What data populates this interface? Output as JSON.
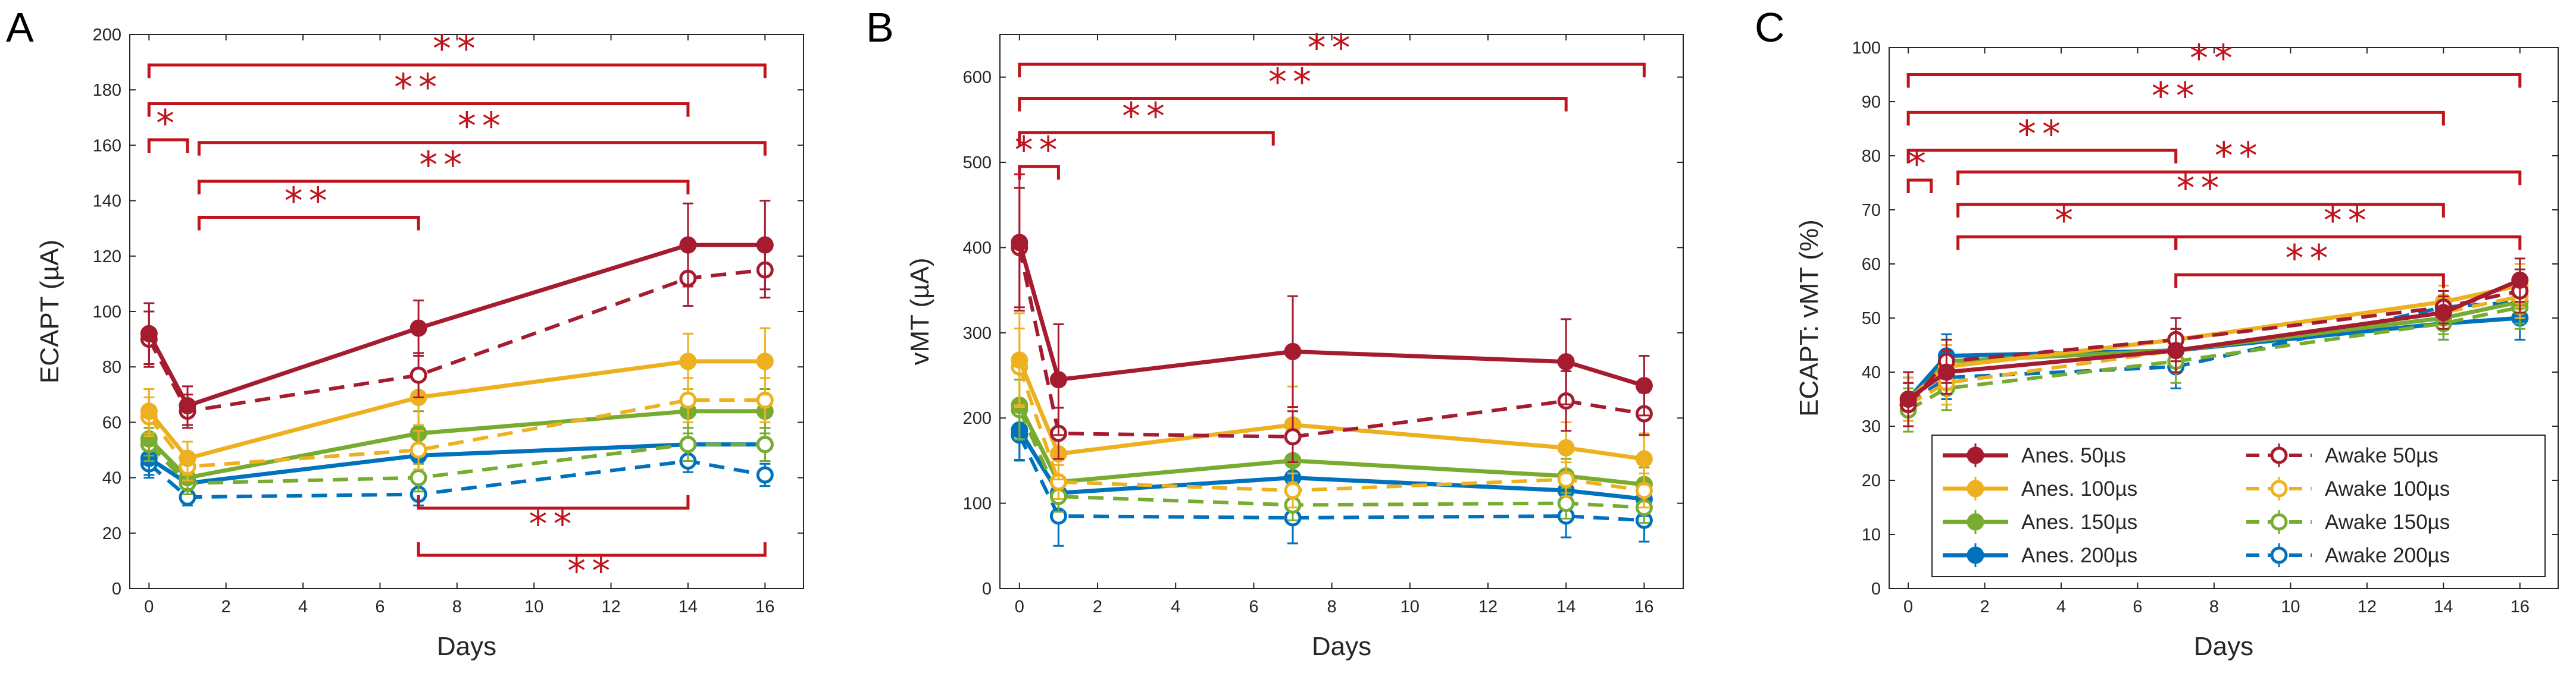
{
  "chart_data": [
    {
      "type": "line",
      "panel_label": "A",
      "xlabel": "Days",
      "ylabel": "ECAPT (µA)",
      "xlim": [
        -0.5,
        17
      ],
      "ylim": [
        0,
        200
      ],
      "xticks": [
        "0",
        "2",
        "4",
        "6",
        "8",
        "10",
        "12",
        "14",
        "16"
      ],
      "yticks": [
        "0",
        "20",
        "40",
        "60",
        "80",
        "100",
        "120",
        "140",
        "160",
        "180",
        "200"
      ],
      "x": [
        0,
        1,
        7,
        14,
        16
      ],
      "series": [
        {
          "name": "Anes. 50µs",
          "color": "#a51c30",
          "dash": false,
          "filled": true,
          "values": [
            92,
            66,
            94,
            124,
            124
          ],
          "err": [
            11,
            7,
            10,
            15,
            16
          ]
        },
        {
          "name": "Awake 50µs",
          "color": "#a51c30",
          "dash": true,
          "filled": false,
          "values": [
            90,
            64,
            77,
            112,
            115
          ],
          "err": [
            10,
            6,
            8,
            10,
            10
          ]
        },
        {
          "name": "Anes. 100µs",
          "color": "#edb120",
          "dash": false,
          "filled": true,
          "values": [
            64,
            47,
            69,
            82,
            82
          ],
          "err": [
            8,
            6,
            10,
            10,
            12
          ]
        },
        {
          "name": "Awake 100µs",
          "color": "#edb120",
          "dash": true,
          "filled": false,
          "values": [
            62,
            44,
            50,
            68,
            68
          ],
          "err": [
            7,
            5,
            7,
            8,
            8
          ]
        },
        {
          "name": "Anes. 150µs",
          "color": "#77ac30",
          "dash": false,
          "filled": true,
          "values": [
            54,
            40,
            56,
            64,
            64
          ],
          "err": [
            6,
            4,
            8,
            8,
            8
          ]
        },
        {
          "name": "Awake 150µs",
          "color": "#77ac30",
          "dash": true,
          "filled": false,
          "values": [
            52,
            38,
            40,
            52,
            52
          ],
          "err": [
            6,
            4,
            5,
            6,
            6
          ]
        },
        {
          "name": "Anes. 200µs",
          "color": "#0072bd",
          "dash": false,
          "filled": true,
          "values": [
            47,
            38,
            48,
            52,
            52
          ],
          "err": [
            6,
            4,
            6,
            6,
            6
          ]
        },
        {
          "name": "Awake 200µs",
          "color": "#0072bd",
          "dash": true,
          "filled": false,
          "values": [
            45,
            33,
            34,
            46,
            41
          ],
          "err": [
            5,
            3,
            4,
            4,
            4
          ]
        }
      ],
      "brackets": [
        {
          "x1": 0,
          "x2": 16,
          "y": 189,
          "label": "**"
        },
        {
          "x1": 0,
          "x2": 14,
          "y": 175,
          "label": "**"
        },
        {
          "x1": 0,
          "x2": 1,
          "y": 162,
          "label": "*"
        },
        {
          "x1": 1.3,
          "x2": 16,
          "y": 161,
          "label": "**"
        },
        {
          "x1": 1.3,
          "x2": 14,
          "y": 147,
          "label": "**"
        },
        {
          "x1": 1.3,
          "x2": 7,
          "y": 134,
          "label": "**"
        },
        {
          "x1": 7,
          "x2": 14,
          "y": 29,
          "label": "**",
          "down": true
        },
        {
          "x1": 7,
          "x2": 16,
          "y": 12,
          "label": "**",
          "down": true
        }
      ]
    },
    {
      "type": "line",
      "panel_label": "B",
      "xlabel": "Days",
      "ylabel": "vMT (µA)",
      "xlim": [
        -0.5,
        17
      ],
      "ylim": [
        0,
        650
      ],
      "xticks": [
        "0",
        "2",
        "4",
        "6",
        "8",
        "10",
        "12",
        "14",
        "16"
      ],
      "yticks": [
        "0",
        "100",
        "200",
        "300",
        "400",
        "500",
        "600"
      ],
      "x": [
        0,
        1,
        7,
        14,
        16
      ],
      "series": [
        {
          "name": "Anes. 50µs",
          "color": "#a51c30",
          "dash": false,
          "filled": true,
          "values": [
            406,
            245,
            278,
            266,
            238
          ],
          "err": [
            80,
            65,
            65,
            50,
            35
          ]
        },
        {
          "name": "Awake 50µs",
          "color": "#a51c30",
          "dash": true,
          "filled": false,
          "values": [
            400,
            182,
            178,
            220,
            205
          ],
          "err": [
            70,
            30,
            30,
            35,
            25
          ]
        },
        {
          "name": "Anes. 100µs",
          "color": "#edb120",
          "dash": false,
          "filled": true,
          "values": [
            268,
            158,
            192,
            165,
            152
          ],
          "err": [
            55,
            30,
            45,
            30,
            30
          ]
        },
        {
          "name": "Awake 100µs",
          "color": "#edb120",
          "dash": true,
          "filled": false,
          "values": [
            260,
            125,
            115,
            128,
            115
          ],
          "err": [
            45,
            20,
            20,
            20,
            20
          ]
        },
        {
          "name": "Anes. 150µs",
          "color": "#77ac30",
          "dash": false,
          "filled": true,
          "values": [
            215,
            125,
            150,
            132,
            122
          ],
          "err": [
            40,
            20,
            25,
            20,
            20
          ]
        },
        {
          "name": "Awake 150µs",
          "color": "#77ac30",
          "dash": true,
          "filled": false,
          "values": [
            210,
            108,
            98,
            100,
            95
          ],
          "err": [
            35,
            18,
            18,
            18,
            18
          ]
        },
        {
          "name": "Anes. 200µs",
          "color": "#0072bd",
          "dash": false,
          "filled": true,
          "values": [
            186,
            112,
            130,
            115,
            105
          ],
          "err": [
            35,
            20,
            25,
            20,
            20
          ]
        },
        {
          "name": "Awake 200µs",
          "color": "#0072bd",
          "dash": true,
          "filled": false,
          "values": [
            180,
            85,
            83,
            85,
            80
          ],
          "err": [
            30,
            35,
            30,
            25,
            25
          ]
        }
      ],
      "brackets": [
        {
          "x1": 0,
          "x2": 16,
          "y": 615,
          "label": "**"
        },
        {
          "x1": 0,
          "x2": 14,
          "y": 575,
          "label": "**"
        },
        {
          "x1": 0,
          "x2": 6.5,
          "y": 535,
          "label": "**"
        },
        {
          "x1": 0,
          "x2": 1,
          "y": 495,
          "label": "**"
        }
      ]
    },
    {
      "type": "line",
      "panel_label": "C",
      "xlabel": "Days",
      "ylabel": "ECAPT: vMT (%)",
      "xlim": [
        -0.5,
        17
      ],
      "ylim": [
        0,
        100
      ],
      "xticks": [
        "0",
        "2",
        "4",
        "6",
        "8",
        "10",
        "12",
        "14",
        "16"
      ],
      "yticks": [
        "0",
        "10",
        "20",
        "30",
        "40",
        "50",
        "60",
        "70",
        "80",
        "90",
        "100"
      ],
      "x": [
        0,
        1,
        7,
        14,
        16
      ],
      "series": [
        {
          "name": "Anes. 50µs",
          "color": "#a51c30",
          "dash": false,
          "filled": true,
          "values": [
            35,
            40,
            44,
            51,
            57
          ],
          "err": [
            5,
            4,
            4,
            3,
            4
          ]
        },
        {
          "name": "Awake 50µs",
          "color": "#a51c30",
          "dash": true,
          "filled": false,
          "values": [
            34,
            42,
            46,
            52,
            55
          ],
          "err": [
            4,
            4,
            4,
            3,
            4
          ]
        },
        {
          "name": "Anes. 100µs",
          "color": "#edb120",
          "dash": false,
          "filled": true,
          "values": [
            35,
            41,
            46,
            53,
            56
          ],
          "err": [
            4,
            4,
            4,
            3,
            4
          ]
        },
        {
          "name": "Awake 100µs",
          "color": "#edb120",
          "dash": true,
          "filled": false,
          "values": [
            34,
            38,
            44,
            51,
            54
          ],
          "err": [
            4,
            4,
            4,
            3,
            4
          ]
        },
        {
          "name": "Anes. 150µs",
          "color": "#77ac30",
          "dash": false,
          "filled": true,
          "values": [
            34,
            42,
            44,
            50,
            53
          ],
          "err": [
            4,
            4,
            4,
            3,
            4
          ]
        },
        {
          "name": "Awake 150µs",
          "color": "#77ac30",
          "dash": true,
          "filled": false,
          "values": [
            33,
            37,
            42,
            49,
            52
          ],
          "err": [
            4,
            4,
            4,
            3,
            4
          ]
        },
        {
          "name": "Anes. 200µs",
          "color": "#0072bd",
          "dash": false,
          "filled": true,
          "values": [
            35,
            43,
            44,
            49,
            50
          ],
          "err": [
            4,
            4,
            4,
            3,
            4
          ]
        },
        {
          "name": "Awake 200µs",
          "color": "#0072bd",
          "dash": true,
          "filled": false,
          "values": [
            34,
            39,
            41,
            52,
            53
          ],
          "err": [
            4,
            4,
            4,
            3,
            4
          ]
        }
      ],
      "brackets": [
        {
          "x1": 0,
          "x2": 16,
          "y": 95,
          "label": "**"
        },
        {
          "x1": 0,
          "x2": 14,
          "y": 88,
          "label": "**"
        },
        {
          "x1": 0,
          "x2": 7,
          "y": 81,
          "label": "**"
        },
        {
          "x1": 0,
          "x2": 0.6,
          "y": 75.5,
          "label": "*"
        },
        {
          "x1": 1.3,
          "x2": 16,
          "y": 77,
          "label": "**"
        },
        {
          "x1": 1.3,
          "x2": 14,
          "y": 71,
          "label": "**"
        },
        {
          "x1": 1.3,
          "x2": 7,
          "y": 65,
          "label": "*"
        },
        {
          "x1": 7,
          "x2": 16,
          "y": 65,
          "label": "**"
        },
        {
          "x1": 7,
          "x2": 14,
          "y": 58,
          "label": "**"
        }
      ],
      "legend": {
        "placement": "bottom-right",
        "entries": [
          "Anes. 50µs",
          "Awake 50µs",
          "Anes. 100µs",
          "Awake 100µs",
          "Anes. 150µs",
          "Awake 150µs",
          "Anes. 200µs",
          "Awake 200µs"
        ]
      }
    }
  ]
}
